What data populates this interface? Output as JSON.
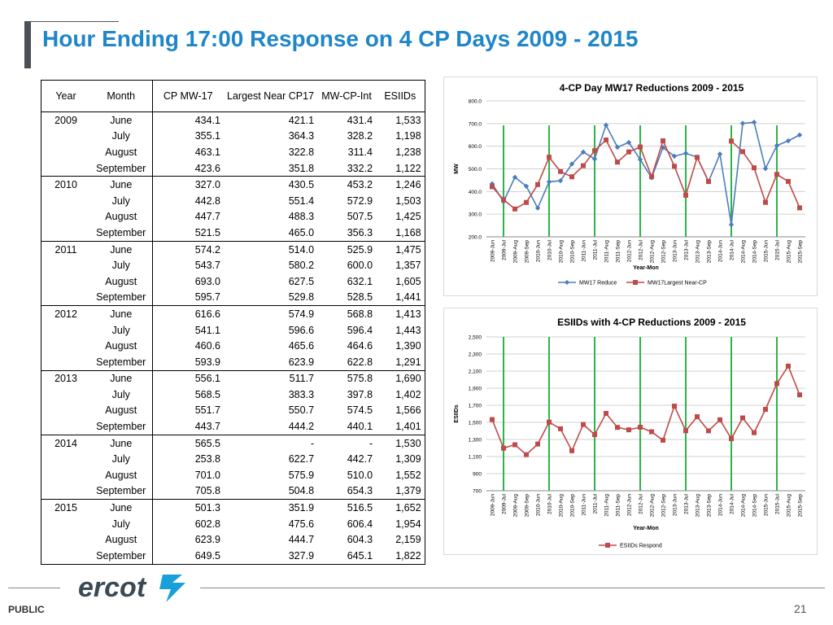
{
  "title": "Hour Ending 17:00 Response on 4 CP Days 2009 - 2015",
  "table": {
    "headers": [
      "Year",
      "Month",
      "CP MW-17",
      "Largest Near CP17",
      "MW-CP-Int",
      "ESIIDs"
    ],
    "rows": [
      [
        "2009",
        "June",
        "434.1",
        "421.1",
        "431.4",
        "1,533"
      ],
      [
        "",
        "July",
        "355.1",
        "364.3",
        "328.2",
        "1,198"
      ],
      [
        "",
        "August",
        "463.1",
        "322.8",
        "311.4",
        "1,238"
      ],
      [
        "",
        "September",
        "423.6",
        "351.8",
        "332.2",
        "1,122"
      ],
      [
        "2010",
        "June",
        "327.0",
        "430.5",
        "453.2",
        "1,246"
      ],
      [
        "",
        "July",
        "442.8",
        "551.4",
        "572.9",
        "1,503"
      ],
      [
        "",
        "August",
        "447.7",
        "488.3",
        "507.5",
        "1,425"
      ],
      [
        "",
        "September",
        "521.5",
        "465.0",
        "356.3",
        "1,168"
      ],
      [
        "2011",
        "June",
        "574.2",
        "514.0",
        "525.9",
        "1,475"
      ],
      [
        "",
        "July",
        "543.7",
        "580.2",
        "600.0",
        "1,357"
      ],
      [
        "",
        "August",
        "693.0",
        "627.5",
        "632.1",
        "1,605"
      ],
      [
        "",
        "September",
        "595.7",
        "529.8",
        "528.5",
        "1,441"
      ],
      [
        "2012",
        "June",
        "616.6",
        "574.9",
        "568.8",
        "1,413"
      ],
      [
        "",
        "July",
        "541.1",
        "596.6",
        "596.4",
        "1,443"
      ],
      [
        "",
        "August",
        "460.6",
        "465.6",
        "464.6",
        "1,390"
      ],
      [
        "",
        "September",
        "593.9",
        "623.9",
        "622.8",
        "1,291"
      ],
      [
        "2013",
        "June",
        "556.1",
        "511.7",
        "575.8",
        "1,690"
      ],
      [
        "",
        "July",
        "568.5",
        "383.3",
        "397.8",
        "1,402"
      ],
      [
        "",
        "August",
        "551.7",
        "550.7",
        "574.5",
        "1,566"
      ],
      [
        "",
        "September",
        "443.7",
        "444.2",
        "440.1",
        "1,401"
      ],
      [
        "2014",
        "June",
        "565.5",
        "-",
        "-",
        "1,530"
      ],
      [
        "",
        "July",
        "253.8",
        "622.7",
        "442.7",
        "1,309"
      ],
      [
        "",
        "August",
        "701.0",
        "575.9",
        "510.0",
        "1,552"
      ],
      [
        "",
        "September",
        "705.8",
        "504.8",
        "654.3",
        "1,379"
      ],
      [
        "2015",
        "June",
        "501.3",
        "351.9",
        "516.5",
        "1,652"
      ],
      [
        "",
        "July",
        "602.8",
        "475.6",
        "606.4",
        "1,954"
      ],
      [
        "",
        "August",
        "623.9",
        "444.7",
        "604.3",
        "2,159"
      ],
      [
        "",
        "September",
        "649.5",
        "327.9",
        "645.1",
        "1,822"
      ]
    ]
  },
  "chart_data": [
    {
      "type": "line",
      "title": "4-CP Day MW17 Reductions 2009 - 2015",
      "xlabel": "Year-Mon",
      "ylabel": "MW",
      "ylim": [
        200,
        800
      ],
      "yticks": [
        "200.0",
        "300.0",
        "400.0",
        "500.0",
        "600.0",
        "700.0",
        "800.0"
      ],
      "categories": [
        "2009-Jun",
        "2009-Jul",
        "2009-Aug",
        "2009-Sep",
        "2010-Jun",
        "2010-Jul",
        "2010-Aug",
        "2010-Sep",
        "2011-Jun",
        "2011-Jul",
        "2011-Aug",
        "2011-Sep",
        "2012-Jun",
        "2012-Jul",
        "2012-Aug",
        "2012-Sep",
        "2013-Jun",
        "2013-Jul",
        "2013-Aug",
        "2013-Sep",
        "2014-Jun",
        "2014-Jul",
        "2014-Aug",
        "2014-Sep",
        "2015-Jun",
        "2015-Jul",
        "2015-Aug",
        "2015-Sep"
      ],
      "series": [
        {
          "name": "MW17 Reduce",
          "color": "#4a7ebb",
          "marker": "diamond",
          "values": [
            434.1,
            355.1,
            463.1,
            423.6,
            327.0,
            442.8,
            447.7,
            521.5,
            574.2,
            543.7,
            693.0,
            595.7,
            616.6,
            541.1,
            460.6,
            593.9,
            556.1,
            568.5,
            551.7,
            443.7,
            565.5,
            253.8,
            701.0,
            705.8,
            501.3,
            602.8,
            623.9,
            649.5
          ]
        },
        {
          "name": "MW17Largest Near-CP",
          "color": "#be4b48",
          "marker": "square",
          "values": [
            421.1,
            364.3,
            322.8,
            351.8,
            430.5,
            551.4,
            488.3,
            465.0,
            514.0,
            580.2,
            627.5,
            529.8,
            574.9,
            596.6,
            465.6,
            623.9,
            511.7,
            383.3,
            550.7,
            444.2,
            null,
            622.7,
            575.9,
            504.8,
            351.9,
            475.6,
            444.7,
            327.9
          ]
        }
      ],
      "vertical_markers": [
        1.5,
        5.5,
        9.5,
        13.5,
        17.5,
        21.5,
        25.5
      ],
      "marker_color": "#2db34a",
      "grid": true,
      "legend": "bottom"
    },
    {
      "type": "line",
      "title": "ESIIDs with 4-CP Reductions 2009 - 2015",
      "xlabel": "Year-Mon",
      "ylabel": "ESIIDs",
      "ylim": [
        700,
        2500
      ],
      "yticks": [
        "700",
        "900",
        "1,100",
        "1,300",
        "1,500",
        "1,700",
        "1,900",
        "2,100",
        "2,300",
        "2,500"
      ],
      "categories": [
        "2009-Jun",
        "2009-Jul",
        "2009-Aug",
        "2009-Sep",
        "2010-Jun",
        "2010-Jul",
        "2010-Aug",
        "2010-Sep",
        "2011-Jun",
        "2011-Jul",
        "2011-Aug",
        "2011-Sep",
        "2012-Jun",
        "2012-Jul",
        "2012-Aug",
        "2012-Sep",
        "2013-Jun",
        "2013-Jul",
        "2013-Aug",
        "2013-Sep",
        "2014-Jun",
        "2014-Jul",
        "2014-Aug",
        "2014-Sep",
        "2015-Jun",
        "2015-Jul",
        "2015-Aug",
        "2015-Sep"
      ],
      "series": [
        {
          "name": "ESIIDs Respond",
          "color": "#be4b48",
          "marker": "square",
          "values": [
            1533,
            1198,
            1238,
            1122,
            1246,
            1503,
            1425,
            1168,
            1475,
            1357,
            1605,
            1441,
            1413,
            1443,
            1390,
            1291,
            1690,
            1402,
            1566,
            1401,
            1530,
            1309,
            1552,
            1379,
            1652,
            1954,
            2159,
            1822
          ]
        }
      ],
      "vertical_markers": [
        1.5,
        5.5,
        9.5,
        13.5,
        17.5,
        21.5,
        25.5
      ],
      "marker_color": "#2db34a",
      "grid": true,
      "legend": "bottom"
    }
  ],
  "footer": {
    "logo_text": "ercot",
    "classification": "PUBLIC",
    "page_number": "21"
  }
}
